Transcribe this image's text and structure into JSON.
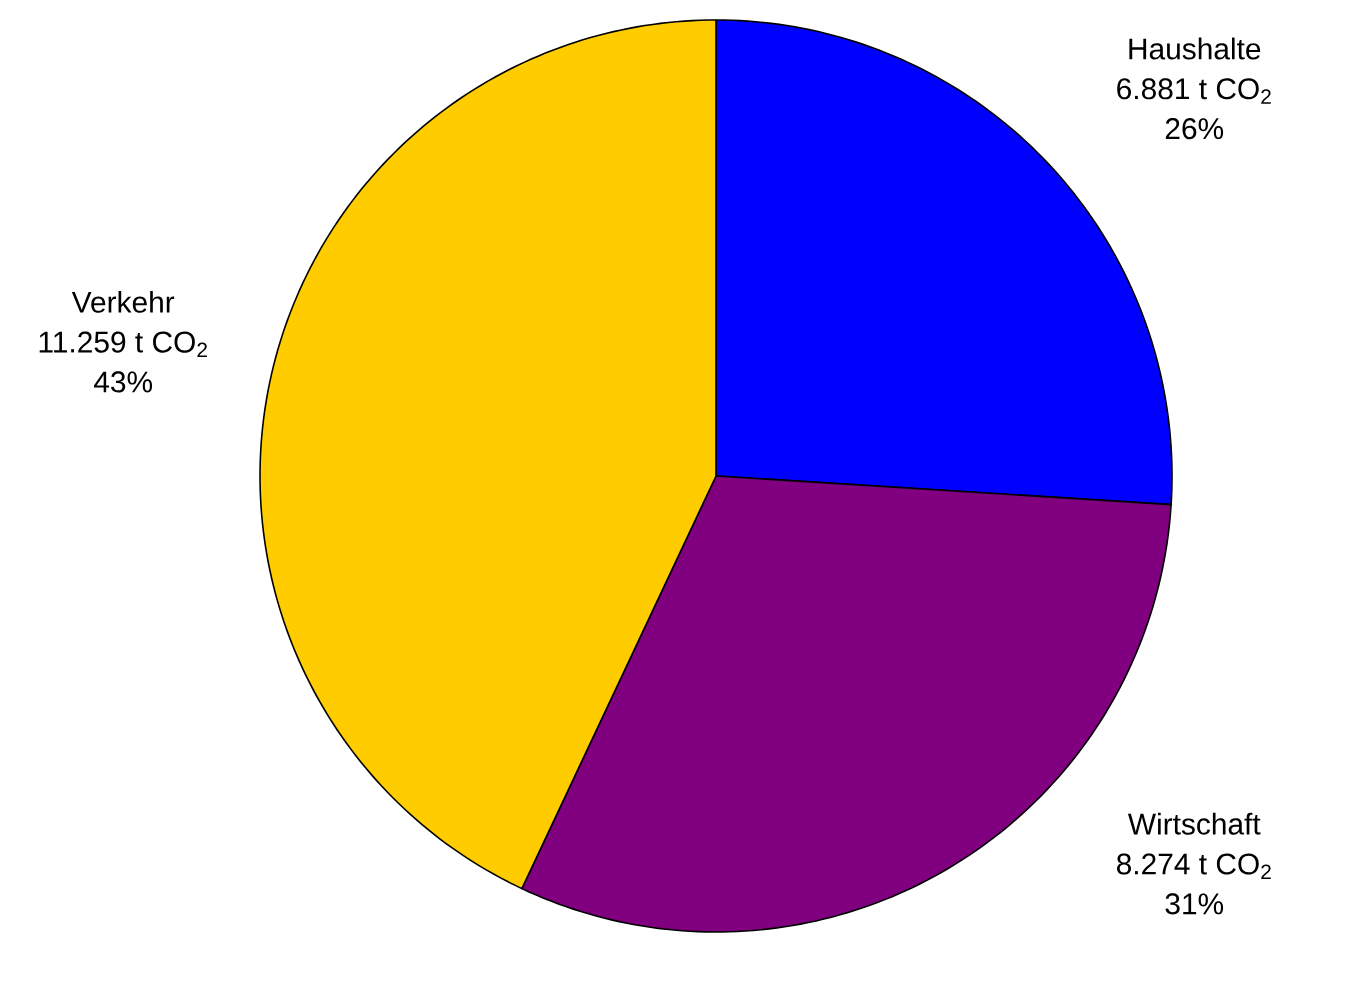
{
  "chart_data": {
    "type": "pie",
    "categories": [
      "Haushalte",
      "Wirtschaft",
      "Verkehr"
    ],
    "values": [
      26,
      31,
      43
    ],
    "colors": [
      "#0000ff",
      "#800080",
      "#ffcc00"
    ],
    "value_labels": [
      "26%",
      "31%",
      "43%"
    ],
    "annotations": [
      "6.881 t CO$_{2}$",
      "8.274 t CO$_{2}$",
      "11.259 t CO$_{2}$"
    ]
  }
}
